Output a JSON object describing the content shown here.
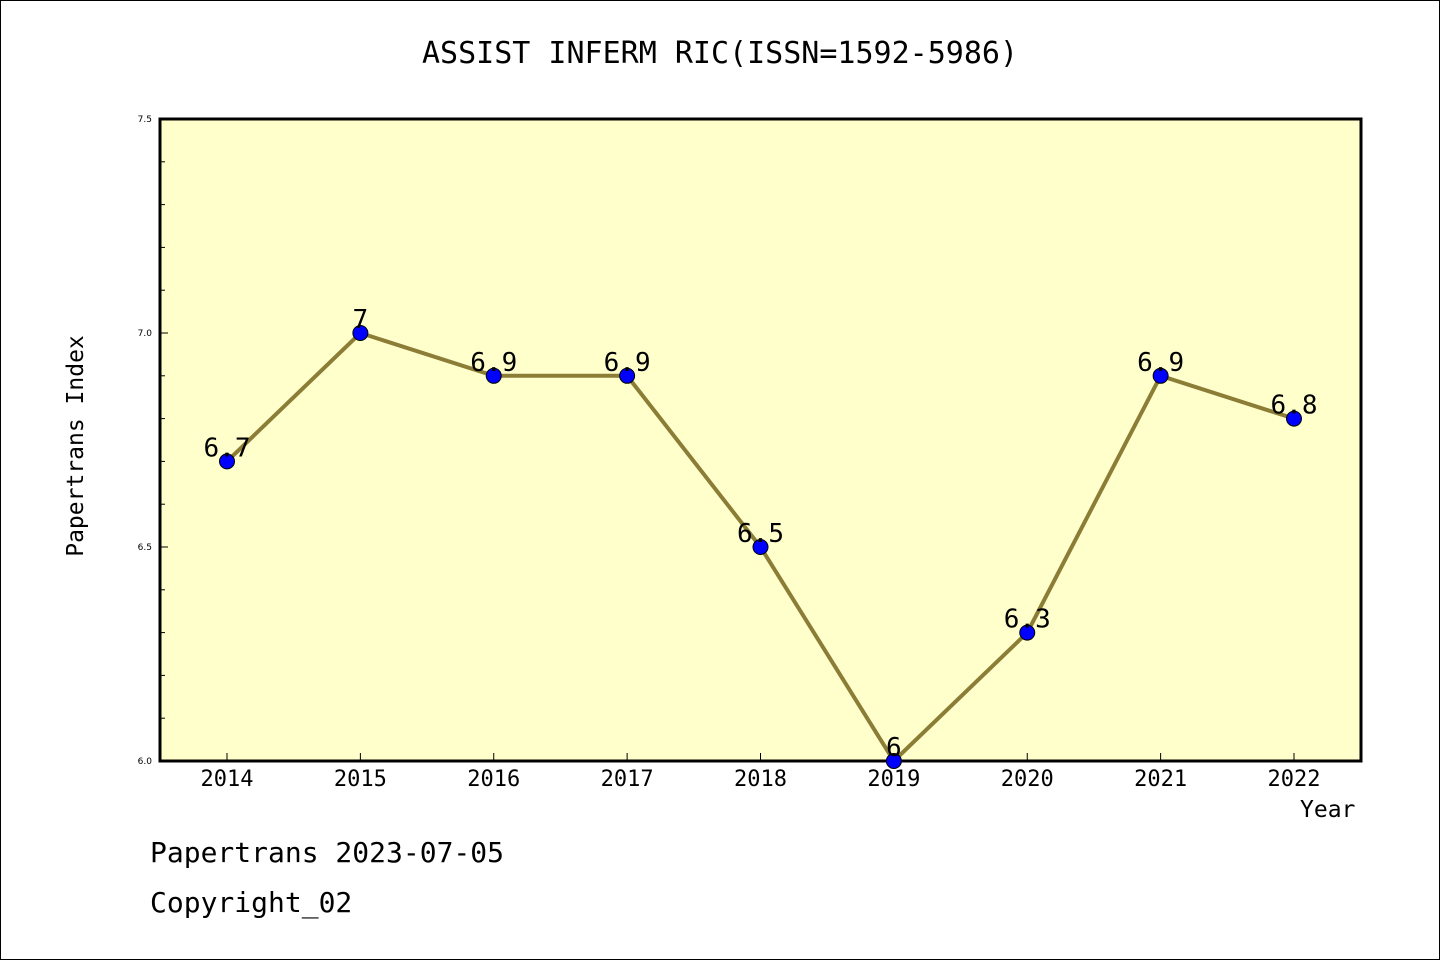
{
  "footer": {
    "line1": "Papertrans 2023-07-05",
    "line2": "Copyright_02"
  },
  "colors": {
    "plot_background": "#ffffcc",
    "line": "#8b7d36",
    "marker": "#0000ff"
  },
  "chart_data": {
    "type": "line",
    "title": "ASSIST INFERM RIC(ISSN=1592-5986)",
    "xlabel": "Year",
    "ylabel": "Papertrans Index",
    "categories": [
      "2014",
      "2015",
      "2016",
      "2017",
      "2018",
      "2019",
      "2020",
      "2021",
      "2022"
    ],
    "series": [
      {
        "values": [
          6.7,
          7,
          6.9,
          6.9,
          6.5,
          6,
          6.3,
          6.9,
          6.8
        ],
        "labels": [
          "6.7",
          "7",
          "6.9",
          "6.9",
          "6.5",
          "6",
          "6.3",
          "6.9",
          "6.8"
        ]
      }
    ],
    "ylim": [
      6.0,
      7.5
    ],
    "yticks": [
      "6.0",
      "6.5",
      "7.0",
      "7.5"
    ],
    "grid": false,
    "legend": "none"
  }
}
